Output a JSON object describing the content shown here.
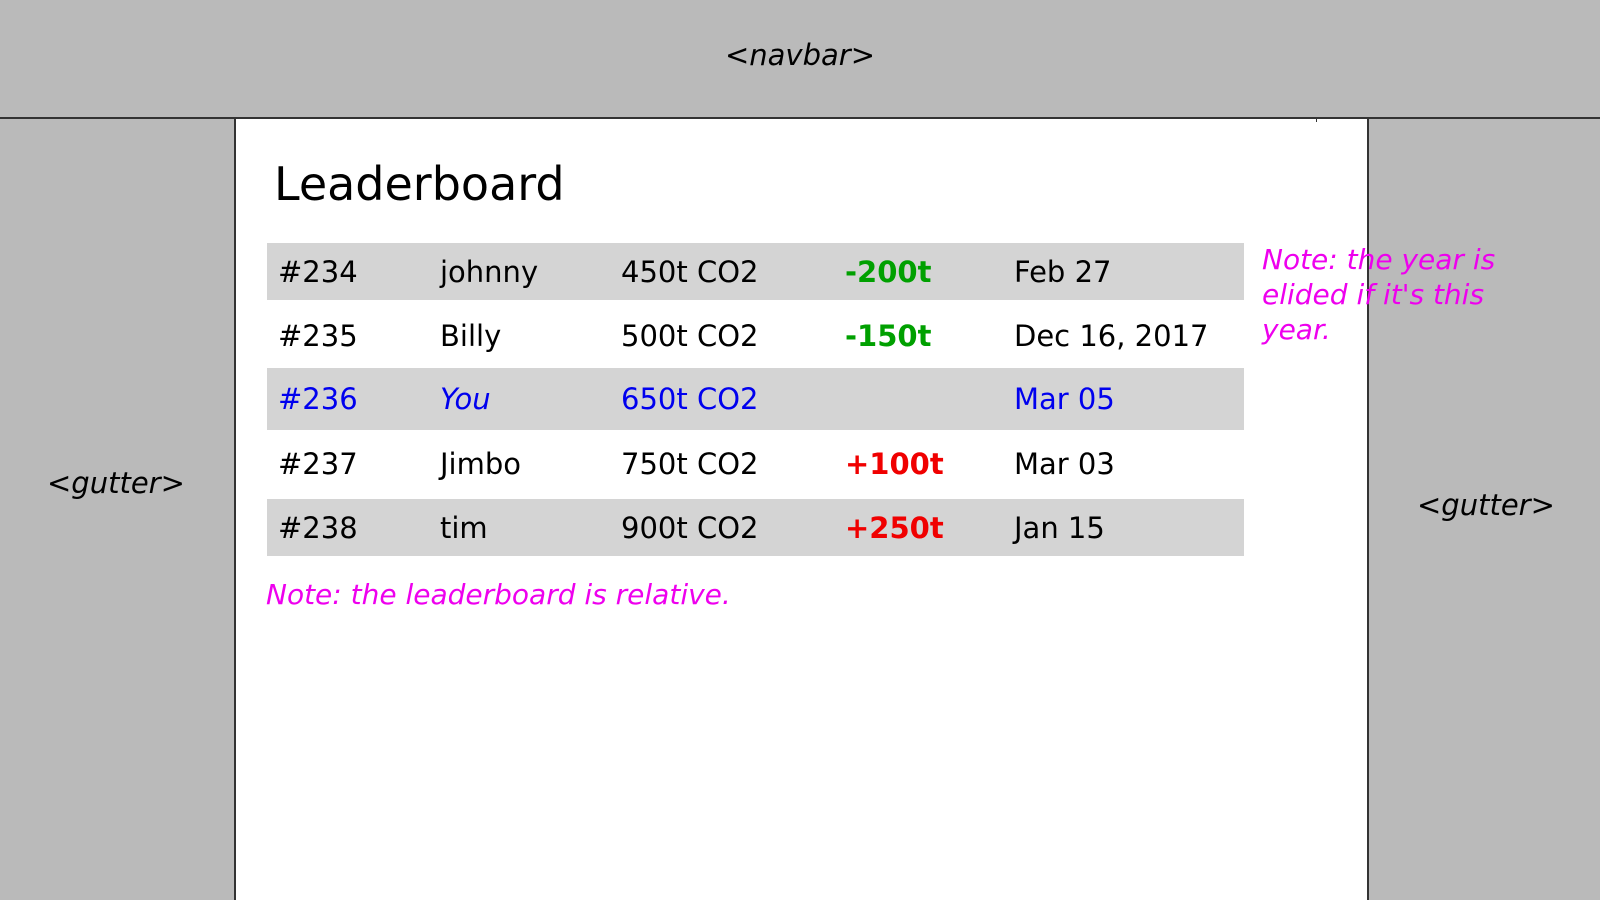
{
  "navbar": {
    "label": "<navbar>"
  },
  "gutters": {
    "left_label": "<gutter>",
    "right_label": "<gutter>"
  },
  "main": {
    "title": "Leaderboard",
    "rows": [
      {
        "rank": "#234",
        "name": "johnny",
        "co2": "450t CO2",
        "delta": "-200t",
        "date": "Feb 27"
      },
      {
        "rank": "#235",
        "name": "Billy",
        "co2": "500t CO2",
        "delta": "-150t",
        "date": "Dec 16, 2017"
      },
      {
        "rank": "#236",
        "name": "You",
        "co2": "650t CO2",
        "delta": "",
        "date": "Mar 05"
      },
      {
        "rank": "#237",
        "name": "Jimbo",
        "co2": "750t CO2",
        "delta": "+100t",
        "date": "Mar 03"
      },
      {
        "rank": "#238",
        "name": "tim",
        "co2": "900t CO2",
        "delta": "+250t",
        "date": "Jan 15"
      }
    ]
  },
  "notes": {
    "year": "Note: the year is elided if it's this year.",
    "relative": "Note: the leaderboard is relative."
  },
  "colors": {
    "note": "#ee00ee",
    "current_user": "#0000ee",
    "delta_negative": "#00a000",
    "delta_positive": "#f00000"
  }
}
